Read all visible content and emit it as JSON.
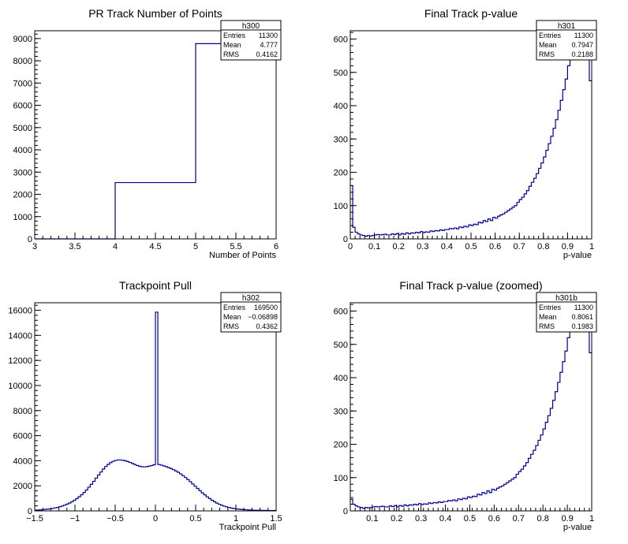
{
  "colors": {
    "line": "#000099",
    "frame": "#000000",
    "background": "#ffffff"
  },
  "chart_data": [
    {
      "type": "histogram",
      "title": "PR Track Number of Points",
      "xlabel": "Number of Points",
      "ylabel": "",
      "xlim": [
        3,
        6
      ],
      "ylim": [
        0,
        9350
      ],
      "xticks": [
        3,
        3.5,
        4,
        4.5,
        5,
        5.5,
        6
      ],
      "xtick_labels": [
        "3",
        "3.5",
        "4",
        "4.5",
        "5",
        "5.5",
        "6"
      ],
      "yticks": [
        0,
        1000,
        2000,
        3000,
        4000,
        5000,
        6000,
        7000,
        8000,
        9000
      ],
      "ytick_labels": [
        "0",
        "1000",
        "2000",
        "3000",
        "4000",
        "5000",
        "6000",
        "7000",
        "8000",
        "9000"
      ],
      "bins": [
        [
          3,
          4,
          0
        ],
        [
          4,
          5,
          2530
        ],
        [
          5,
          6,
          8770
        ]
      ],
      "stats": {
        "name": "h300",
        "rows": [
          {
            "label": "Entries",
            "value": "11300"
          },
          {
            "label": "Mean",
            "value": "4.777"
          },
          {
            "label": "RMS",
            "value": "0.4162"
          }
        ]
      }
    },
    {
      "type": "histogram",
      "title": "Final Track p-value",
      "xlabel": "p-value",
      "ylabel": "",
      "xlim": [
        0,
        1
      ],
      "ylim": [
        0,
        625
      ],
      "xticks": [
        0,
        0.1,
        0.2,
        0.3,
        0.4,
        0.5,
        0.6,
        0.7,
        0.8,
        0.9,
        1
      ],
      "xtick_labels": [
        "0",
        "0.1",
        "0.2",
        "0.3",
        "0.4",
        "0.5",
        "0.6",
        "0.7",
        "0.8",
        "0.9",
        "1"
      ],
      "yticks": [
        0,
        100,
        200,
        300,
        400,
        500,
        600
      ],
      "ytick_labels": [
        "0",
        "100",
        "200",
        "300",
        "400",
        "500",
        "600"
      ],
      "x_start": 0,
      "bin_width": 0.01,
      "values": [
        160,
        35,
        20,
        15,
        12,
        10,
        8,
        10,
        9,
        10,
        12,
        13,
        12,
        13,
        14,
        12,
        12,
        15,
        13,
        16,
        12,
        16,
        14,
        18,
        15,
        18,
        17,
        20,
        18,
        22,
        19,
        21,
        20,
        24,
        22,
        25,
        24,
        27,
        25,
        28,
        28,
        31,
        30,
        33,
        30,
        36,
        34,
        38,
        36,
        42,
        40,
        44,
        43,
        50,
        48,
        55,
        52,
        60,
        55,
        65,
        62,
        68,
        72,
        75,
        80,
        85,
        90,
        95,
        100,
        110,
        118,
        125,
        135,
        145,
        158,
        170,
        182,
        196,
        212,
        228,
        246,
        266,
        286,
        308,
        332,
        358,
        386,
        416,
        448,
        480,
        520,
        555,
        590,
        620,
        600,
        560,
        610,
        625,
        620,
        475
      ],
      "stats": {
        "name": "h301",
        "rows": [
          {
            "label": "Entries",
            "value": "11300"
          },
          {
            "label": "Mean",
            "value": "0.7947"
          },
          {
            "label": "RMS",
            "value": "0.2188"
          }
        ]
      }
    },
    {
      "type": "histogram",
      "title": "Trackpoint Pull",
      "xlabel": "Trackpoint Pull",
      "ylabel": "",
      "xlim": [
        -1.5,
        1.5
      ],
      "ylim": [
        0,
        16600
      ],
      "xticks": [
        -1.5,
        -1,
        -0.5,
        0,
        0.5,
        1,
        1.5
      ],
      "xtick_labels": [
        "−1.5",
        "−1",
        "−0.5",
        "0",
        "0.5",
        "1",
        "1.5"
      ],
      "yticks": [
        0,
        2000,
        4000,
        6000,
        8000,
        10000,
        12000,
        14000,
        16000
      ],
      "ytick_labels": [
        "0",
        "2000",
        "4000",
        "6000",
        "8000",
        "10000",
        "12000",
        "14000",
        "16000"
      ],
      "x_start": -1.5,
      "bin_width": 0.03,
      "values": [
        60,
        70,
        80,
        100,
        120,
        140,
        170,
        200,
        240,
        280,
        330,
        390,
        460,
        540,
        630,
        730,
        850,
        980,
        1130,
        1290,
        1470,
        1670,
        1890,
        2120,
        2360,
        2610,
        2860,
        3100,
        3340,
        3540,
        3710,
        3850,
        3950,
        4020,
        4060,
        4060,
        4040,
        4000,
        3940,
        3870,
        3790,
        3700,
        3620,
        3560,
        3520,
        3510,
        3530,
        3570,
        3620,
        3680,
        15850,
        3700,
        3650,
        3590,
        3530,
        3460,
        3380,
        3290,
        3190,
        3080,
        2950,
        2810,
        2660,
        2500,
        2330,
        2150,
        1970,
        1790,
        1610,
        1440,
        1280,
        1120,
        980,
        850,
        730,
        620,
        530,
        450,
        380,
        320,
        270,
        230,
        190,
        160,
        140,
        120,
        100,
        90,
        80,
        70,
        60,
        55,
        50,
        45,
        40,
        38,
        36,
        34,
        32,
        30
      ],
      "stats": {
        "name": "h302",
        "rows": [
          {
            "label": "Entries",
            "value": "169500"
          },
          {
            "label": "Mean",
            "value": "−0.06898"
          },
          {
            "label": "RMS",
            "value": "0.4362"
          }
        ]
      }
    },
    {
      "type": "histogram",
      "title": "Final Track p-value (zoomed)",
      "xlabel": "p-value",
      "ylabel": "",
      "xlim": [
        0.01,
        1
      ],
      "ylim": [
        0,
        625
      ],
      "xticks": [
        0.1,
        0.2,
        0.3,
        0.4,
        0.5,
        0.6,
        0.7,
        0.8,
        0.9,
        1
      ],
      "xtick_labels": [
        "0.1",
        "0.2",
        "0.3",
        "0.4",
        "0.5",
        "0.6",
        "0.7",
        "0.8",
        "0.9",
        "1"
      ],
      "yticks": [
        0,
        100,
        200,
        300,
        400,
        500,
        600
      ],
      "ytick_labels": [
        "0",
        "100",
        "200",
        "300",
        "400",
        "500",
        "600"
      ],
      "x_start": 0.01,
      "bin_width": 0.01,
      "values": [
        35,
        20,
        15,
        12,
        10,
        8,
        10,
        9,
        10,
        12,
        13,
        12,
        13,
        14,
        12,
        12,
        15,
        13,
        16,
        12,
        16,
        14,
        18,
        15,
        18,
        17,
        20,
        18,
        22,
        19,
        21,
        20,
        24,
        22,
        25,
        24,
        27,
        25,
        28,
        28,
        31,
        30,
        33,
        30,
        36,
        34,
        38,
        36,
        42,
        40,
        44,
        43,
        50,
        48,
        55,
        52,
        60,
        55,
        65,
        62,
        68,
        72,
        75,
        80,
        85,
        90,
        95,
        100,
        110,
        118,
        125,
        135,
        145,
        158,
        170,
        182,
        196,
        212,
        228,
        246,
        266,
        286,
        308,
        332,
        358,
        386,
        416,
        448,
        480,
        520,
        555,
        590,
        620,
        600,
        560,
        610,
        625,
        620,
        475
      ],
      "stats": {
        "name": "h301b",
        "rows": [
          {
            "label": "Entries",
            "value": "11300"
          },
          {
            "label": "Mean",
            "value": "0.8061"
          },
          {
            "label": "RMS",
            "value": "0.1983"
          }
        ]
      }
    }
  ]
}
